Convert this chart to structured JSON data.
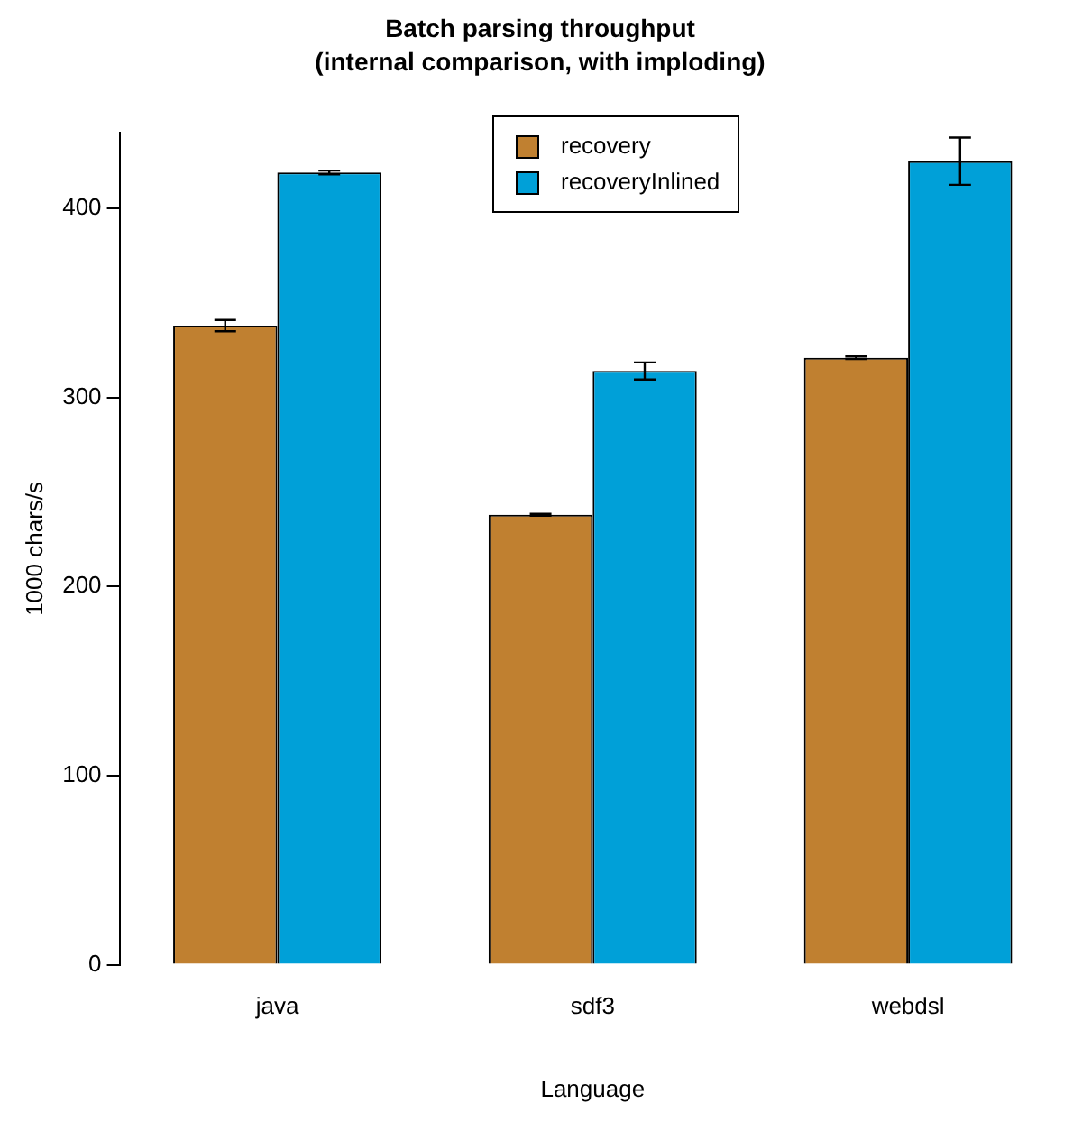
{
  "chart_data": {
    "type": "bar",
    "title": "Batch parsing throughput",
    "subtitle": "(internal comparison, with imploding)",
    "xlabel": "Language",
    "ylabel": "1000 chars/s",
    "categories": [
      "java",
      "sdf3",
      "webdsl"
    ],
    "series": [
      {
        "name": "recovery",
        "color": "#c08030",
        "values": [
          338,
          238,
          321
        ],
        "errors": [
          3,
          0.5,
          0.7
        ]
      },
      {
        "name": "recoveryInlined",
        "color": "#00a0d8",
        "values": [
          419,
          314,
          425
        ],
        "errors": [
          1,
          4.5,
          12.5
        ]
      }
    ],
    "ylim": [
      0,
      440
    ],
    "yticks": [
      0,
      100,
      200,
      300,
      400
    ],
    "grid": false,
    "legend": "top"
  }
}
